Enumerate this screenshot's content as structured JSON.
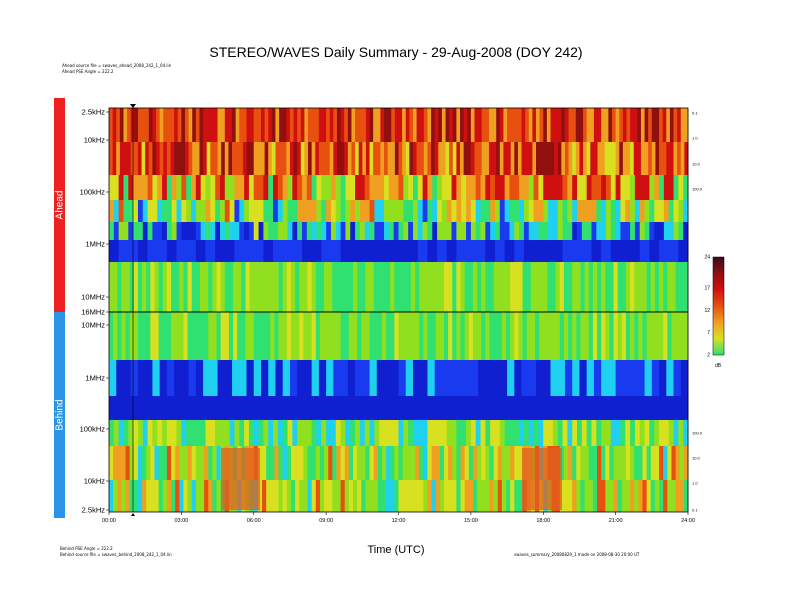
{
  "title": "STEREO/WAVES Daily Summary - 29-Aug-2008 (DOY 242)",
  "header_notes": [
    "Ahead source file = swaves_ahead_2008_242_1_04.lin",
    "Ahead PSE Angle = 222.2"
  ],
  "footer_notes": [
    "Behind PSE Angle = 222.2",
    "Behind source file = swaves_behind_2008_242_1_04.lin"
  ],
  "footer_right": "swaves_summary_20080829_1 made on 2008-08-30 20:00 UT",
  "sidebar": {
    "ahead_label": "Ahead",
    "behind_label": "Behind",
    "ahead_color": "#ee2020",
    "behind_color": "#2a95e6"
  },
  "colorbar": {
    "unit": "dB",
    "ticks": [
      "24",
      "17",
      "12",
      "7",
      "2"
    ]
  },
  "chart_data": {
    "type": "heatmap",
    "title": "STEREO/WAVES Daily Summary - 29-Aug-2008 (DOY 242)",
    "xlabel": "Time (UTC)",
    "x_ticks": [
      "00:00",
      "03:00",
      "06:00",
      "09:00",
      "12:00",
      "15:00",
      "18:00",
      "21:00",
      "24:00"
    ],
    "xlim_hours": [
      0,
      24
    ],
    "panels": [
      {
        "name": "Ahead",
        "y_ticks_top_to_bottom": [
          "2.5kHz",
          "10kHz",
          "100kHz",
          "1MHz",
          "10MHz",
          "16MHz"
        ]
      },
      {
        "name": "Behind",
        "y_ticks_top_to_bottom": [
          "10MHz",
          "1MHz",
          "100kHz",
          "10kHz",
          "2.5kHz"
        ]
      }
    ],
    "right_ticks_ahead": [
      "0.1",
      "1.0",
      "10.0",
      "100.0"
    ],
    "right_ticks_behind": [
      "100.0",
      "10.0",
      "1.0",
      "0.1"
    ],
    "colorbar_range_db": [
      2,
      24
    ]
  }
}
